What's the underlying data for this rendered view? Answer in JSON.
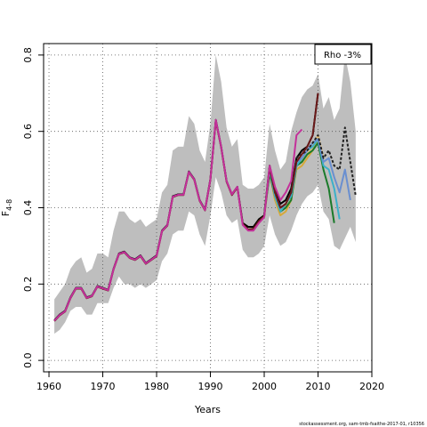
{
  "chart_data": {
    "type": "line",
    "title": "",
    "xlabel": "Years",
    "ylabel": "F",
    "ylabel_sub": "4-8",
    "xlim": [
      1959,
      2020
    ],
    "ylim": [
      -0.03,
      0.83
    ],
    "xticks": [
      1960,
      1970,
      1980,
      1990,
      2000,
      2010,
      2020
    ],
    "xtick_labels": [
      "1960",
      "1970",
      "1980",
      "1990",
      "2000",
      "2010",
      "2020"
    ],
    "yticks": [
      0.0,
      0.2,
      0.4,
      0.6,
      0.8
    ],
    "ytick_labels": [
      "0.0",
      "0.2",
      "0.4",
      "0.6",
      "0.8"
    ],
    "grid": true,
    "legend": {
      "position": "top-right",
      "label": "Rho -3%"
    },
    "credit": "stockassessment.org, sam-tmb-fsaithe-2017-01, r10356",
    "ci_band": {
      "x": [
        1961,
        1962,
        1963,
        1964,
        1965,
        1966,
        1967,
        1968,
        1969,
        1970,
        1971,
        1972,
        1973,
        1974,
        1975,
        1976,
        1977,
        1978,
        1979,
        1980,
        1981,
        1982,
        1983,
        1984,
        1985,
        1986,
        1987,
        1988,
        1989,
        1990,
        1991,
        1992,
        1993,
        1994,
        1995,
        1996,
        1997,
        1998,
        1999,
        2000,
        2001,
        2002,
        2003,
        2004,
        2005,
        2006,
        2007,
        2008,
        2009,
        2010,
        2011,
        2012,
        2013,
        2014,
        2015,
        2016,
        2017
      ],
      "upper": [
        0.16,
        0.18,
        0.2,
        0.24,
        0.26,
        0.27,
        0.23,
        0.24,
        0.28,
        0.28,
        0.27,
        0.34,
        0.39,
        0.39,
        0.37,
        0.36,
        0.37,
        0.35,
        0.36,
        0.37,
        0.44,
        0.46,
        0.55,
        0.56,
        0.56,
        0.64,
        0.62,
        0.55,
        0.52,
        0.62,
        0.8,
        0.73,
        0.61,
        0.56,
        0.58,
        0.46,
        0.45,
        0.45,
        0.46,
        0.48,
        0.62,
        0.55,
        0.5,
        0.52,
        0.6,
        0.65,
        0.69,
        0.71,
        0.72,
        0.75,
        0.66,
        0.69,
        0.63,
        0.66,
        0.8,
        0.73,
        0.6
      ],
      "lower": [
        0.07,
        0.08,
        0.1,
        0.13,
        0.14,
        0.14,
        0.12,
        0.12,
        0.15,
        0.15,
        0.15,
        0.19,
        0.22,
        0.2,
        0.2,
        0.19,
        0.2,
        0.19,
        0.2,
        0.21,
        0.26,
        0.28,
        0.33,
        0.34,
        0.34,
        0.39,
        0.38,
        0.33,
        0.3,
        0.38,
        0.48,
        0.44,
        0.38,
        0.36,
        0.37,
        0.29,
        0.27,
        0.27,
        0.28,
        0.3,
        0.38,
        0.33,
        0.3,
        0.31,
        0.34,
        0.38,
        0.41,
        0.43,
        0.44,
        0.46,
        0.39,
        0.37,
        0.3,
        0.29,
        0.32,
        0.35,
        0.31
      ]
    },
    "series": [
      {
        "color": "#000000",
        "dashed": false,
        "x": [
          1961,
          1962,
          1963,
          1964,
          1965,
          1966,
          1967,
          1968,
          1969,
          1970,
          1971,
          1972,
          1973,
          1974,
          1975,
          1976,
          1977,
          1978,
          1979,
          1980,
          1981,
          1982,
          1983,
          1984,
          1985,
          1986,
          1987,
          1988,
          1989,
          1990,
          1991,
          1992,
          1993,
          1994,
          1995,
          1996,
          1997,
          1998,
          1999,
          2000,
          2001,
          2002,
          2003,
          2004,
          2005,
          2006,
          2007,
          2008,
          2009,
          2010
        ],
        "values": [
          0.105,
          0.12,
          0.13,
          0.165,
          0.19,
          0.19,
          0.165,
          0.17,
          0.195,
          0.19,
          0.185,
          0.24,
          0.28,
          0.285,
          0.27,
          0.265,
          0.275,
          0.255,
          0.265,
          0.275,
          0.34,
          0.355,
          0.43,
          0.435,
          0.435,
          0.495,
          0.475,
          0.42,
          0.395,
          0.475,
          0.63,
          0.56,
          0.47,
          0.435,
          0.455,
          0.36,
          0.35,
          0.35,
          0.37,
          0.38,
          0.51,
          0.45,
          0.41,
          0.42,
          0.45,
          0.53,
          0.55,
          0.56,
          0.59,
          0.7
        ]
      },
      {
        "color": "#d6a93a",
        "dashed": false,
        "x": [
          2000,
          2001,
          2002,
          2003,
          2004,
          2005,
          2006,
          2007,
          2008,
          2009,
          2010,
          2011
        ],
        "values": [
          0.375,
          0.49,
          0.42,
          0.38,
          0.39,
          0.42,
          0.5,
          0.51,
          0.53,
          0.55,
          0.58,
          0.52
        ]
      },
      {
        "color": "#e8c27a",
        "dashed": false,
        "x": [
          2000,
          2001,
          2002,
          2003,
          2004,
          2005,
          2006,
          2007,
          2008,
          2009,
          2010,
          2011
        ],
        "values": [
          0.38,
          0.5,
          0.43,
          0.39,
          0.4,
          0.43,
          0.51,
          0.52,
          0.54,
          0.56,
          0.59,
          0.53
        ]
      },
      {
        "color": "#1a7a2a",
        "dashed": false,
        "x": [
          2000,
          2001,
          2002,
          2003,
          2004,
          2005,
          2006,
          2007,
          2008,
          2009,
          2010,
          2011,
          2012,
          2013
        ],
        "values": [
          0.38,
          0.49,
          0.43,
          0.39,
          0.4,
          0.42,
          0.51,
          0.52,
          0.54,
          0.55,
          0.57,
          0.5,
          0.45,
          0.36
        ]
      },
      {
        "color": "#3bb0c9",
        "dashed": false,
        "x": [
          2000,
          2001,
          2002,
          2003,
          2004,
          2005,
          2006,
          2007,
          2008,
          2009,
          2010,
          2011,
          2012,
          2013,
          2014
        ],
        "values": [
          0.38,
          0.5,
          0.43,
          0.39,
          0.41,
          0.43,
          0.51,
          0.53,
          0.55,
          0.56,
          0.58,
          0.51,
          0.5,
          0.45,
          0.37
        ]
      },
      {
        "color": "#6a8fd0",
        "dashed": false,
        "x": [
          2000,
          2001,
          2002,
          2003,
          2004,
          2005,
          2006,
          2007,
          2008,
          2009,
          2010,
          2011,
          2012,
          2013,
          2014,
          2015,
          2016
        ],
        "values": [
          0.38,
          0.5,
          0.44,
          0.4,
          0.41,
          0.44,
          0.52,
          0.53,
          0.55,
          0.57,
          0.58,
          0.52,
          0.53,
          0.48,
          0.44,
          0.5,
          0.42
        ]
      },
      {
        "color": "#222222",
        "dashed": true,
        "x": [
          2000,
          2001,
          2002,
          2003,
          2004,
          2005,
          2006,
          2007,
          2008,
          2009,
          2010,
          2011,
          2012,
          2013,
          2014,
          2015,
          2016,
          2017
        ],
        "values": [
          0.38,
          0.51,
          0.44,
          0.4,
          0.41,
          0.44,
          0.53,
          0.54,
          0.55,
          0.57,
          0.59,
          0.53,
          0.55,
          0.51,
          0.5,
          0.61,
          0.52,
          0.43
        ]
      },
      {
        "color": "#6b1a1a",
        "dashed": false,
        "x": [
          1961,
          1962,
          1963,
          1964,
          1965,
          1966,
          1967,
          1968,
          1969,
          1970,
          1971,
          1972,
          1973,
          1974,
          1975,
          1976,
          1977,
          1978,
          1979,
          1980,
          1981,
          1982,
          1983,
          1984,
          1985,
          1986,
          1987,
          1988,
          1989,
          1990,
          1991,
          1992,
          1993,
          1994,
          1995,
          1996,
          1997,
          1998,
          1999,
          2000,
          2001,
          2002,
          2003,
          2004,
          2005,
          2006,
          2007,
          2008,
          2009,
          2010
        ],
        "values": [
          0.103,
          0.118,
          0.128,
          0.163,
          0.188,
          0.188,
          0.163,
          0.168,
          0.193,
          0.188,
          0.183,
          0.238,
          0.278,
          0.283,
          0.268,
          0.263,
          0.273,
          0.253,
          0.263,
          0.273,
          0.338,
          0.353,
          0.428,
          0.433,
          0.433,
          0.493,
          0.473,
          0.418,
          0.393,
          0.473,
          0.628,
          0.558,
          0.468,
          0.433,
          0.453,
          0.358,
          0.343,
          0.345,
          0.365,
          0.378,
          0.505,
          0.44,
          0.4,
          0.41,
          0.44,
          0.52,
          0.54,
          0.56,
          0.59,
          0.7
        ]
      },
      {
        "color": "#c3309a",
        "dashed": false,
        "x": [
          1961,
          1962,
          1963,
          1964,
          1965,
          1966,
          1967,
          1968,
          1969,
          1970,
          1971,
          1972,
          1973,
          1974,
          1975,
          1976,
          1977,
          1978,
          1979,
          1980,
          1981,
          1982,
          1983,
          1984,
          1985,
          1986,
          1987,
          1988,
          1989,
          1990,
          1991,
          1992,
          1993,
          1994,
          1995,
          1996,
          1997,
          1998,
          1999,
          2000,
          2001,
          2002,
          2003,
          2004,
          2005,
          2006,
          2007
        ],
        "values": [
          0.104,
          0.119,
          0.129,
          0.164,
          0.189,
          0.189,
          0.164,
          0.169,
          0.194,
          0.189,
          0.184,
          0.239,
          0.279,
          0.284,
          0.269,
          0.264,
          0.274,
          0.254,
          0.264,
          0.274,
          0.339,
          0.354,
          0.429,
          0.434,
          0.434,
          0.494,
          0.474,
          0.419,
          0.394,
          0.474,
          0.63,
          0.56,
          0.47,
          0.435,
          0.455,
          0.355,
          0.34,
          0.34,
          0.36,
          0.375,
          0.51,
          0.455,
          0.42,
          0.44,
          0.47,
          0.59,
          0.605
        ]
      }
    ]
  }
}
